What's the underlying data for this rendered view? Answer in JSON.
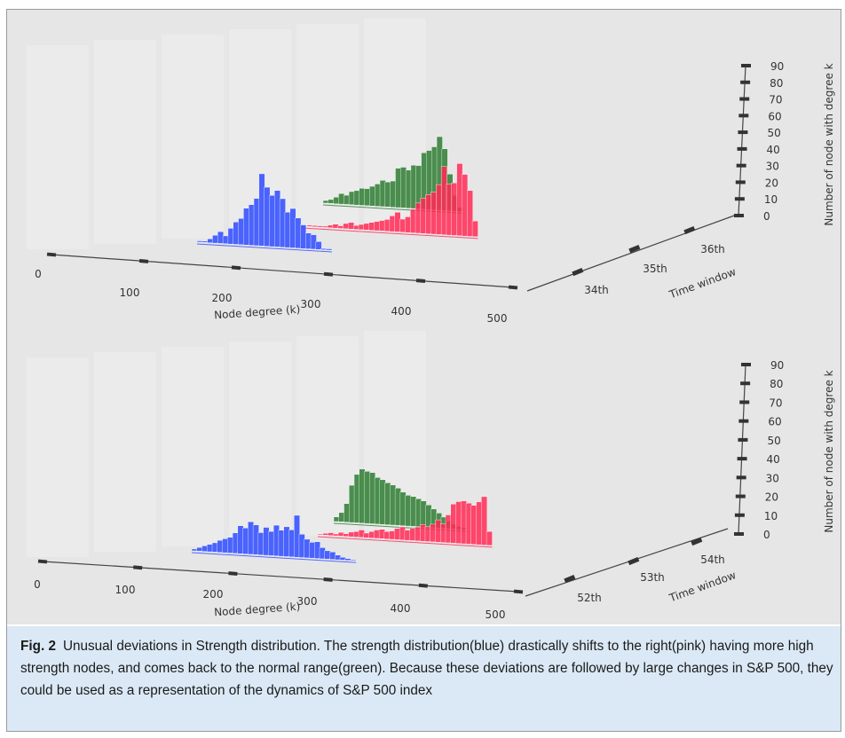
{
  "caption": {
    "label": "Fig. 2",
    "text": "Unusual deviations in Strength distribution. The strength distribution(blue) drastically shifts to the right(pink) having more high strength nodes, and comes back to the normal range(green). Because these deviations are followed by large changes in S&P 500, they could be used as a representation of the dynamics of S&P 500 index"
  },
  "colors": {
    "blue": "#2e4bff",
    "green": "#2e7d32",
    "pink": "#ff2a55",
    "pane": "#e6e6e6"
  },
  "chart_data": [
    {
      "type": "bar",
      "projection": "3d",
      "xlabel": "Node degree (k)",
      "ylabel": "Time window",
      "zlabel": "Number of node with degree k",
      "x_ticks": [
        "0",
        "100",
        "200",
        "300",
        "400",
        "500"
      ],
      "y_ticks": [
        "34th",
        "35th",
        "36th"
      ],
      "z_ticks": [
        "0",
        "10",
        "20",
        "30",
        "40",
        "50",
        "60",
        "70",
        "80",
        "90"
      ],
      "xlim": [
        0,
        500
      ],
      "zlim": [
        0,
        90
      ],
      "series": [
        {
          "name": "34th",
          "color": "blue",
          "x": [
            120,
            126,
            132,
            138,
            144,
            150,
            156,
            162,
            168,
            174,
            180,
            186,
            192,
            198,
            204,
            210,
            216,
            222,
            228,
            234,
            240,
            246,
            252,
            258,
            264,
            270
          ],
          "values": [
            1,
            1,
            3,
            6,
            9,
            6,
            12,
            17,
            20,
            28,
            31,
            36,
            55,
            45,
            39,
            43,
            37,
            27,
            30,
            23,
            18,
            12,
            11,
            6,
            1,
            1
          ]
        },
        {
          "name": "34th",
          "color": "pink",
          "x": [
            208,
            214,
            220,
            226,
            232,
            238,
            244,
            250,
            256,
            262,
            268,
            274,
            280,
            286,
            292,
            298,
            304,
            310,
            316,
            322,
            328,
            334,
            340,
            346,
            352,
            358,
            364,
            370,
            376,
            382,
            388,
            394,
            400,
            406
          ],
          "values": [
            0,
            1,
            1,
            1,
            1,
            2,
            3,
            2,
            4,
            5,
            3,
            4,
            5,
            6,
            7,
            8,
            9,
            12,
            15,
            10,
            12,
            18,
            23,
            27,
            30,
            32,
            38,
            52,
            39,
            40,
            55,
            47,
            35,
            12
          ]
        },
        {
          "name": "36th",
          "color": "green",
          "x": [
            226,
            232,
            238,
            244,
            250,
            256,
            262,
            268,
            274,
            280,
            286,
            292,
            298,
            304,
            310,
            316,
            322,
            328,
            334,
            340,
            346,
            352,
            358,
            364,
            370,
            376,
            382
          ],
          "values": [
            2,
            3,
            5,
            8,
            7,
            10,
            11,
            13,
            13,
            15,
            17,
            20,
            19,
            20,
            30,
            31,
            29,
            33,
            33,
            43,
            45,
            48,
            56,
            47,
            28,
            12,
            3
          ]
        }
      ]
    },
    {
      "type": "bar",
      "projection": "3d",
      "xlabel": "Node degree (k)",
      "ylabel": "Time window",
      "zlabel": "Number of node with degree k",
      "x_ticks": [
        "0",
        "100",
        "200",
        "300",
        "400",
        "500"
      ],
      "y_ticks": [
        "52th",
        "53th",
        "54th"
      ],
      "z_ticks": [
        "0",
        "10",
        "20",
        "30",
        "40",
        "50",
        "60",
        "70",
        "80",
        "90"
      ],
      "xlim": [
        0,
        500
      ],
      "zlim": [
        0,
        90
      ],
      "series": [
        {
          "name": "52th",
          "color": "blue",
          "x": [
            120,
            126,
            132,
            138,
            144,
            150,
            156,
            162,
            168,
            174,
            180,
            186,
            192,
            198,
            204,
            210,
            216,
            222,
            228,
            234,
            240,
            246,
            252,
            258,
            264,
            270,
            276,
            282,
            288,
            294,
            300,
            306
          ],
          "values": [
            2,
            4,
            6,
            8,
            10,
            13,
            15,
            17,
            22,
            30,
            28,
            35,
            32,
            24,
            30,
            26,
            33,
            28,
            32,
            29,
            45,
            25,
            20,
            17,
            18,
            12,
            9,
            8,
            5,
            3,
            2,
            1
          ]
        },
        {
          "name": "52th",
          "color": "pink",
          "x": [
            212,
            218,
            224,
            230,
            236,
            242,
            248,
            254,
            260,
            266,
            272,
            278,
            284,
            290,
            296,
            302,
            308,
            314,
            320,
            326,
            332,
            338,
            344,
            350,
            356,
            362,
            368,
            374,
            380,
            386,
            392,
            398,
            404,
            410
          ],
          "values": [
            1,
            2,
            3,
            2,
            4,
            3,
            5,
            6,
            8,
            5,
            7,
            9,
            10,
            8,
            9,
            12,
            14,
            11,
            13,
            15,
            18,
            16,
            19,
            24,
            20,
            30,
            42,
            45,
            46,
            44,
            42,
            46,
            52,
            15
          ]
        },
        {
          "name": "54th",
          "color": "green",
          "x": [
            212,
            218,
            224,
            230,
            236,
            242,
            248,
            254,
            260,
            266,
            272,
            278,
            284,
            290,
            296,
            302,
            308,
            314,
            320,
            326,
            332,
            338,
            344,
            350,
            356,
            362
          ],
          "values": [
            5,
            10,
            20,
            40,
            52,
            58,
            56,
            55,
            50,
            48,
            45,
            43,
            40,
            36,
            33,
            32,
            30,
            28,
            24,
            20,
            16,
            12,
            8,
            5,
            3,
            2
          ]
        }
      ]
    }
  ]
}
